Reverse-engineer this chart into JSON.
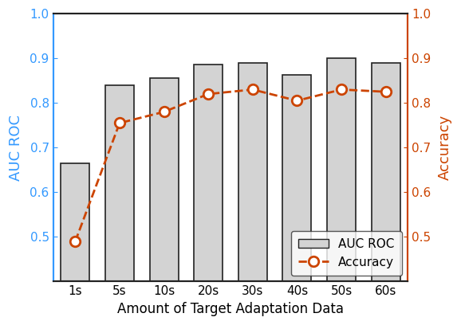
{
  "categories": [
    "1s",
    "5s",
    "10s",
    "20s",
    "30s",
    "40s",
    "50s",
    "60s"
  ],
  "auc_roc": [
    0.665,
    0.84,
    0.855,
    0.886,
    0.89,
    0.862,
    0.9,
    0.89
  ],
  "accuracy": [
    0.49,
    0.755,
    0.78,
    0.82,
    0.83,
    0.805,
    0.83,
    0.825
  ],
  "bar_color": "#d3d3d3",
  "bar_edgecolor": "#222222",
  "line_color": "#cc4400",
  "left_axis_color": "#3399ff",
  "right_axis_color": "#cc4400",
  "spine_color": "#222222",
  "ylim_left": [
    0.4,
    1.0
  ],
  "ylim_right": [
    0.4,
    1.0
  ],
  "yticks_left": [
    0.5,
    0.6,
    0.7,
    0.8,
    0.9,
    1.0
  ],
  "yticks_right": [
    0.5,
    0.6,
    0.7,
    0.8,
    0.9,
    1.0
  ],
  "xlabel": "Amount of Target Adaptation Data",
  "ylabel_left": "AUC ROC",
  "ylabel_right": "Accuracy",
  "legend_labels": [
    "AUC ROC",
    "Accuracy"
  ],
  "tick_fontsize": 11,
  "label_fontsize": 13,
  "xlabel_fontsize": 12,
  "bar_width": 0.65,
  "figsize": [
    5.78,
    4.08
  ],
  "dpi": 100
}
